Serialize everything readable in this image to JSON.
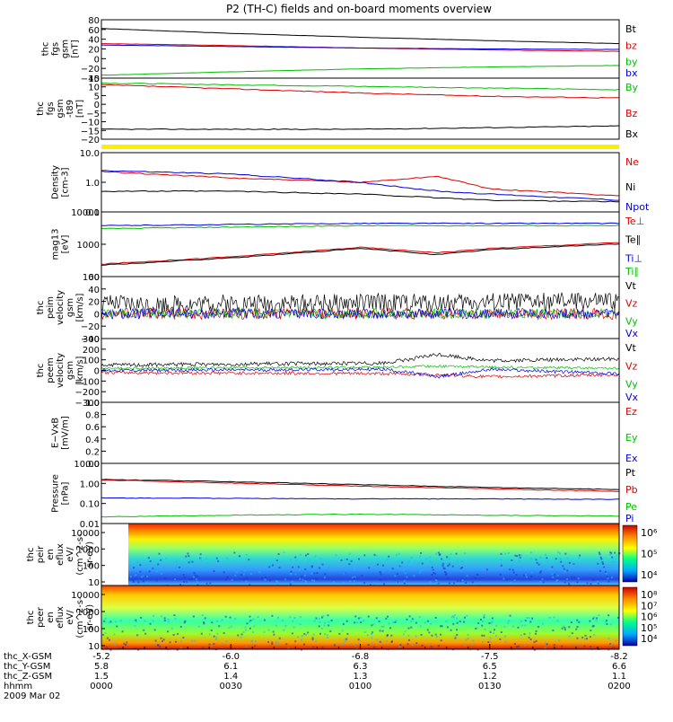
{
  "title": "P2 (TH-C) fields and on-board moments overview",
  "colors": {
    "black": "#000000",
    "red": "#e00000",
    "green": "#00c000",
    "blue": "#0000e0",
    "yellow": "#ffee00",
    "axis": "#000000"
  },
  "x_axis": {
    "ticks": [
      "0000",
      "0030",
      "0100",
      "0130",
      "0200"
    ],
    "rows": [
      {
        "label": "thc_X-GSM",
        "values": [
          "-5.2",
          "-6.0",
          "-6.8",
          "-7.5",
          "-8.2"
        ]
      },
      {
        "label": "thc_Y-GSM",
        "values": [
          "5.8",
          "6.1",
          "6.3",
          "6.5",
          "6.6"
        ]
      },
      {
        "label": "thc_Z-GSM",
        "values": [
          "1.5",
          "1.4",
          "1.3",
          "1.2",
          "1.1"
        ]
      },
      {
        "label": "hhmm",
        "values": [
          "0000",
          "0030",
          "0100",
          "0130",
          "0200"
        ]
      }
    ],
    "date": "2009 Mar 02"
  },
  "chart_data": [
    {
      "type": "line",
      "ylabel": [
        "thc",
        "fgs",
        "gsm",
        "[nT]"
      ],
      "yticks": [
        "80",
        "60",
        "40",
        "20",
        "0",
        "−20",
        "−40"
      ],
      "ylim": [
        -40,
        80
      ],
      "x": [
        0,
        0.25,
        0.5,
        0.75,
        1
      ],
      "series": [
        {
          "name": "Bt",
          "color": "black",
          "values": [
            62,
            52,
            44,
            37,
            31
          ]
        },
        {
          "name": "bz",
          "color": "red",
          "values": [
            31,
            27,
            22,
            18,
            15
          ]
        },
        {
          "name": "by",
          "color": "green",
          "values": [
            -34,
            -27,
            -21,
            -17,
            -14
          ]
        },
        {
          "name": "bx",
          "color": "blue",
          "values": [
            28,
            25,
            22,
            20,
            19
          ]
        }
      ]
    },
    {
      "type": "line",
      "ylabel": [
        "thc",
        "fgs",
        "gsm",
        "-t89",
        "[nT]"
      ],
      "yticks": [
        "15",
        "10",
        "5",
        "0",
        "−5",
        "−10",
        "−15",
        "−20"
      ],
      "ylim": [
        -22,
        15
      ],
      "x": [
        0,
        0.25,
        0.5,
        0.75,
        1
      ],
      "series": [
        {
          "name": "By",
          "color": "green",
          "values": [
            12,
            11,
            10,
            9,
            8
          ]
        },
        {
          "name": "Bz",
          "color": "red",
          "values": [
            11,
            8.5,
            6,
            4,
            3
          ]
        },
        {
          "name": "Bx",
          "color": "black",
          "values": [
            -16,
            -16,
            -16,
            -15,
            -14
          ]
        }
      ]
    },
    {
      "type": "status-bar",
      "color": "yellow"
    },
    {
      "type": "line",
      "log": true,
      "ylabel": [
        "Density",
        "[cm-3]"
      ],
      "yticks": [
        "10.0",
        "1.0",
        "0.1"
      ],
      "ylim": [
        0.1,
        10
      ],
      "x": [
        0,
        0.25,
        0.5,
        0.65,
        0.75,
        1
      ],
      "series": [
        {
          "name": "Ne",
          "color": "red",
          "values": [
            2.3,
            1.4,
            1.0,
            1.6,
            0.6,
            0.35
          ]
        },
        {
          "name": "Ni",
          "color": "black",
          "values": [
            0.5,
            0.5,
            0.4,
            0.3,
            0.25,
            0.22
          ]
        },
        {
          "name": "Npot",
          "color": "blue",
          "values": [
            2.5,
            1.9,
            1.0,
            0.5,
            0.4,
            0.25
          ]
        }
      ]
    },
    {
      "type": "line",
      "log": true,
      "ylabel": [
        "mag13",
        "[eV]"
      ],
      "yticks": [
        "10000",
        "1000",
        "100"
      ],
      "ylim": [
        30,
        15000
      ],
      "x": [
        0,
        0.25,
        0.5,
        0.65,
        0.75,
        1
      ],
      "series": [
        {
          "name": "Te⊥",
          "color": "red",
          "values": [
            100,
            200,
            500,
            300,
            450,
            800
          ]
        },
        {
          "name": "Te∥",
          "color": "black",
          "values": [
            90,
            180,
            450,
            250,
            400,
            700
          ]
        },
        {
          "name": "Ti⊥",
          "color": "blue",
          "values": [
            4000,
            4500,
            5000,
            5000,
            5000,
            5000
          ]
        },
        {
          "name": "Ti∥",
          "color": "green",
          "values": [
            3000,
            3500,
            4000,
            4000,
            4000,
            4000
          ]
        }
      ]
    },
    {
      "type": "line",
      "noisy": true,
      "ylabel": [
        "thc",
        "peim",
        "velocity",
        "gsm",
        "[km/s]"
      ],
      "yticks": [
        "60",
        "40",
        "20",
        "0",
        "−20",
        "−40"
      ],
      "ylim": [
        -40,
        60
      ],
      "x": [
        0,
        1
      ],
      "series": [
        {
          "name": "Vt",
          "color": "black",
          "values": [
            15,
            20
          ],
          "noise": 15
        },
        {
          "name": "Vz",
          "color": "red",
          "values": [
            0,
            0
          ],
          "noise": 9
        },
        {
          "name": "Vy",
          "color": "green",
          "values": [
            0,
            0
          ],
          "noise": 8
        },
        {
          "name": "Vx",
          "color": "blue",
          "values": [
            0,
            0
          ],
          "noise": 8
        }
      ]
    },
    {
      "type": "line",
      "noisy": true,
      "ylabel": [
        "thc",
        "peem",
        "velocity",
        "gsm",
        "[km/s]"
      ],
      "yticks": [
        "300",
        "200",
        "100",
        "0",
        "−100",
        "−200",
        "−300"
      ],
      "ylim": [
        -300,
        300
      ],
      "x": [
        0,
        0.55,
        0.65,
        0.75,
        1
      ],
      "series": [
        {
          "name": "Vt",
          "color": "black",
          "values": [
            50,
            70,
            150,
            90,
            110
          ],
          "noise": 18
        },
        {
          "name": "Vz",
          "color": "red",
          "values": [
            -20,
            -30,
            -40,
            -60,
            -40
          ],
          "noise": 15
        },
        {
          "name": "Vy",
          "color": "green",
          "values": [
            20,
            30,
            40,
            30,
            20
          ],
          "noise": 12
        },
        {
          "name": "Vx",
          "color": "blue",
          "values": [
            0,
            10,
            -60,
            10,
            -30
          ],
          "noise": 15
        }
      ]
    },
    {
      "type": "line",
      "ylabel": [
        "E−VxB",
        "[mV/m]"
      ],
      "yticks": [
        "1.0",
        "0.8",
        "0.6",
        "0.4",
        "0.2",
        "0.0"
      ],
      "ylim": [
        0,
        1
      ],
      "x": [],
      "series": [
        {
          "name": "Ez",
          "color": "red",
          "values": []
        },
        {
          "name": "Ey",
          "color": "green",
          "values": []
        },
        {
          "name": "Ex",
          "color": "blue",
          "values": []
        }
      ]
    },
    {
      "type": "line",
      "log": true,
      "ylabel": [
        "Pressure",
        "[nPa]"
      ],
      "yticks": [
        "10.00",
        "1.00",
        "0.10",
        "0.01"
      ],
      "ylim": [
        0.008,
        12
      ],
      "x": [
        0,
        0.25,
        0.5,
        0.75,
        1
      ],
      "series": [
        {
          "name": "Pt",
          "color": "black",
          "values": [
            1.7,
            1.3,
            0.9,
            0.65,
            0.5
          ]
        },
        {
          "name": "Pb",
          "color": "red",
          "values": [
            1.6,
            1.1,
            0.75,
            0.55,
            0.4
          ]
        },
        {
          "name": "Pe",
          "color": "green",
          "values": [
            0.018,
            0.022,
            0.025,
            0.022,
            0.02
          ]
        },
        {
          "name": "Pi",
          "color": "blue",
          "values": [
            0.18,
            0.17,
            0.16,
            0.16,
            0.15
          ]
        }
      ]
    },
    {
      "type": "heatmap",
      "ylabel": [
        "thc",
        "peir",
        "en",
        "eflux",
        "eV/",
        "(cm^2-s-",
        "sr-eV)"
      ],
      "yticks": [
        "10000",
        "1000",
        "100",
        "10"
      ],
      "colorbar_ticks": [
        "10⁶",
        "10⁵",
        "10⁴"
      ]
    },
    {
      "type": "heatmap",
      "ylabel": [
        "thc",
        "peer",
        "en",
        "eflux",
        "eV/",
        "(cm^2-s-",
        "sr-eV)"
      ],
      "yticks": [
        "10000",
        "1000",
        "100",
        "10"
      ],
      "colorbar_ticks": [
        "10⁸",
        "10⁷",
        "10⁶",
        "10⁵",
        "10⁴"
      ]
    }
  ]
}
